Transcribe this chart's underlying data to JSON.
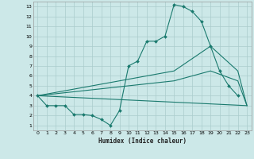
{
  "title": "",
  "xlabel": "Humidex (Indice chaleur)",
  "background_color": "#cce8e8",
  "grid_color": "#aacccc",
  "line_color": "#1a7a6e",
  "xlim": [
    -0.5,
    23.5
  ],
  "ylim": [
    0.5,
    13.5
  ],
  "xticks": [
    0,
    1,
    2,
    3,
    4,
    5,
    6,
    7,
    8,
    9,
    10,
    11,
    12,
    13,
    14,
    15,
    16,
    17,
    18,
    19,
    20,
    21,
    22,
    23
  ],
  "yticks": [
    1,
    2,
    3,
    4,
    5,
    6,
    7,
    8,
    9,
    10,
    11,
    12,
    13
  ],
  "line1_x": [
    0,
    1,
    2,
    3,
    4,
    5,
    6,
    7,
    8,
    9,
    10,
    11,
    12,
    13,
    14,
    15,
    16,
    17,
    18,
    19,
    20,
    21,
    22
  ],
  "line1_y": [
    4.0,
    3.0,
    3.0,
    3.0,
    2.1,
    2.1,
    2.0,
    1.6,
    1.0,
    2.5,
    7.0,
    7.5,
    9.5,
    9.5,
    10.0,
    13.2,
    13.0,
    12.5,
    11.5,
    9.0,
    6.5,
    5.0,
    4.0
  ],
  "line2_x": [
    0,
    23
  ],
  "line2_y": [
    4.0,
    3.0
  ],
  "line3_x": [
    0,
    15,
    19,
    22,
    23
  ],
  "line3_y": [
    4.0,
    6.5,
    9.0,
    6.5,
    3.0
  ],
  "line4_x": [
    0,
    15,
    19,
    22,
    23
  ],
  "line4_y": [
    4.0,
    5.5,
    6.5,
    5.5,
    3.0
  ]
}
